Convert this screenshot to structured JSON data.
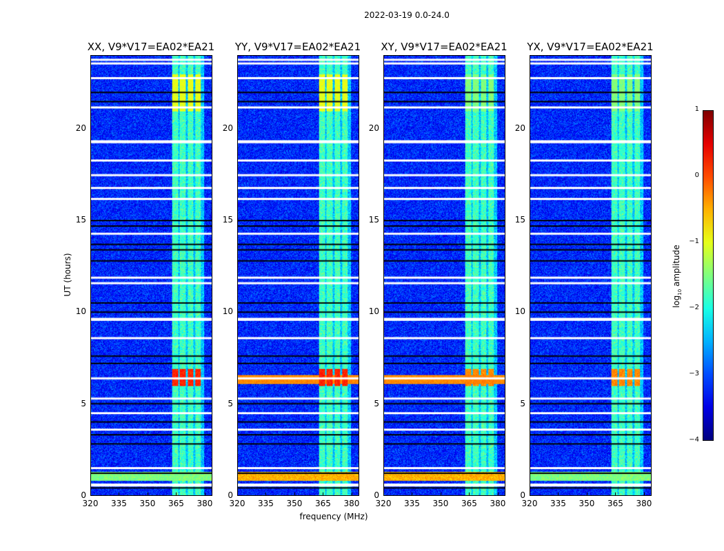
{
  "suptitle": "2022-03-19 0.0-24.0",
  "chart_data": {
    "type": "heatmap",
    "panels": [
      {
        "title": "XX, V9*V17=EA02*EA21",
        "pol": "XX"
      },
      {
        "title": "YY, V9*V17=EA02*EA21",
        "pol": "YY"
      },
      {
        "title": "XY, V9*V17=EA02*EA21",
        "pol": "XY"
      },
      {
        "title": "YX, V9*V17=EA02*EA21",
        "pol": "YX"
      }
    ],
    "xlabel": "frequency (MHz)",
    "ylabel": "UT (hours)",
    "xlim": [
      320,
      384
    ],
    "ylim": [
      0,
      24
    ],
    "xticks": [
      "320",
      "335",
      "350",
      "365",
      "380"
    ],
    "xtick_values": [
      320,
      335,
      350,
      365,
      380
    ],
    "yticks": [
      "0",
      "5",
      "10",
      "15",
      "20"
    ],
    "ytick_values": [
      0,
      5,
      10,
      15,
      20
    ],
    "colorbar": {
      "label": "log10 amplitude",
      "label_main": "log",
      "label_sub": "10",
      "label_rest": " amplitude",
      "range": [
        -4,
        1
      ],
      "ticks": [
        "1",
        "0",
        "−1",
        "−2",
        "−3",
        "−4"
      ],
      "tick_values": [
        1,
        0,
        -1,
        -2,
        -3,
        -4
      ],
      "colormap": "jet"
    },
    "background_level": -3.2,
    "rfi_subbands_mhz": [
      [
        363,
        366
      ],
      [
        367,
        370
      ],
      [
        371,
        374
      ],
      [
        375,
        378
      ]
    ],
    "rfi_level": -2.0,
    "strong_rfi": [
      {
        "ut": [
          21,
          23
        ],
        "level": -1.0
      },
      {
        "ut": [
          6.0,
          6.9
        ],
        "level": 0.2
      }
    ],
    "broadband_rfi": {
      "ut": [
        6.1,
        6.6
      ],
      "level": -0.3,
      "pols": [
        "YY",
        "XY"
      ]
    },
    "flagged_ut_white": [
      0.55,
      0.6,
      1.5,
      3.6,
      4.5,
      5.3,
      6.4,
      8.6,
      9.6,
      9.65,
      11.6,
      11.9,
      14.3,
      16.2,
      16.8,
      17.5,
      18.3,
      19.3,
      19.35,
      21.2,
      22.8,
      23.6,
      23.8
    ],
    "dark_ut_rows": [
      0.4,
      1.2,
      2.8,
      3.3,
      4.0,
      5.0,
      7.2,
      7.6,
      10.0,
      10.5,
      12.8,
      13.4,
      13.7,
      14.7,
      15.0,
      21.5,
      22.0
    ]
  }
}
